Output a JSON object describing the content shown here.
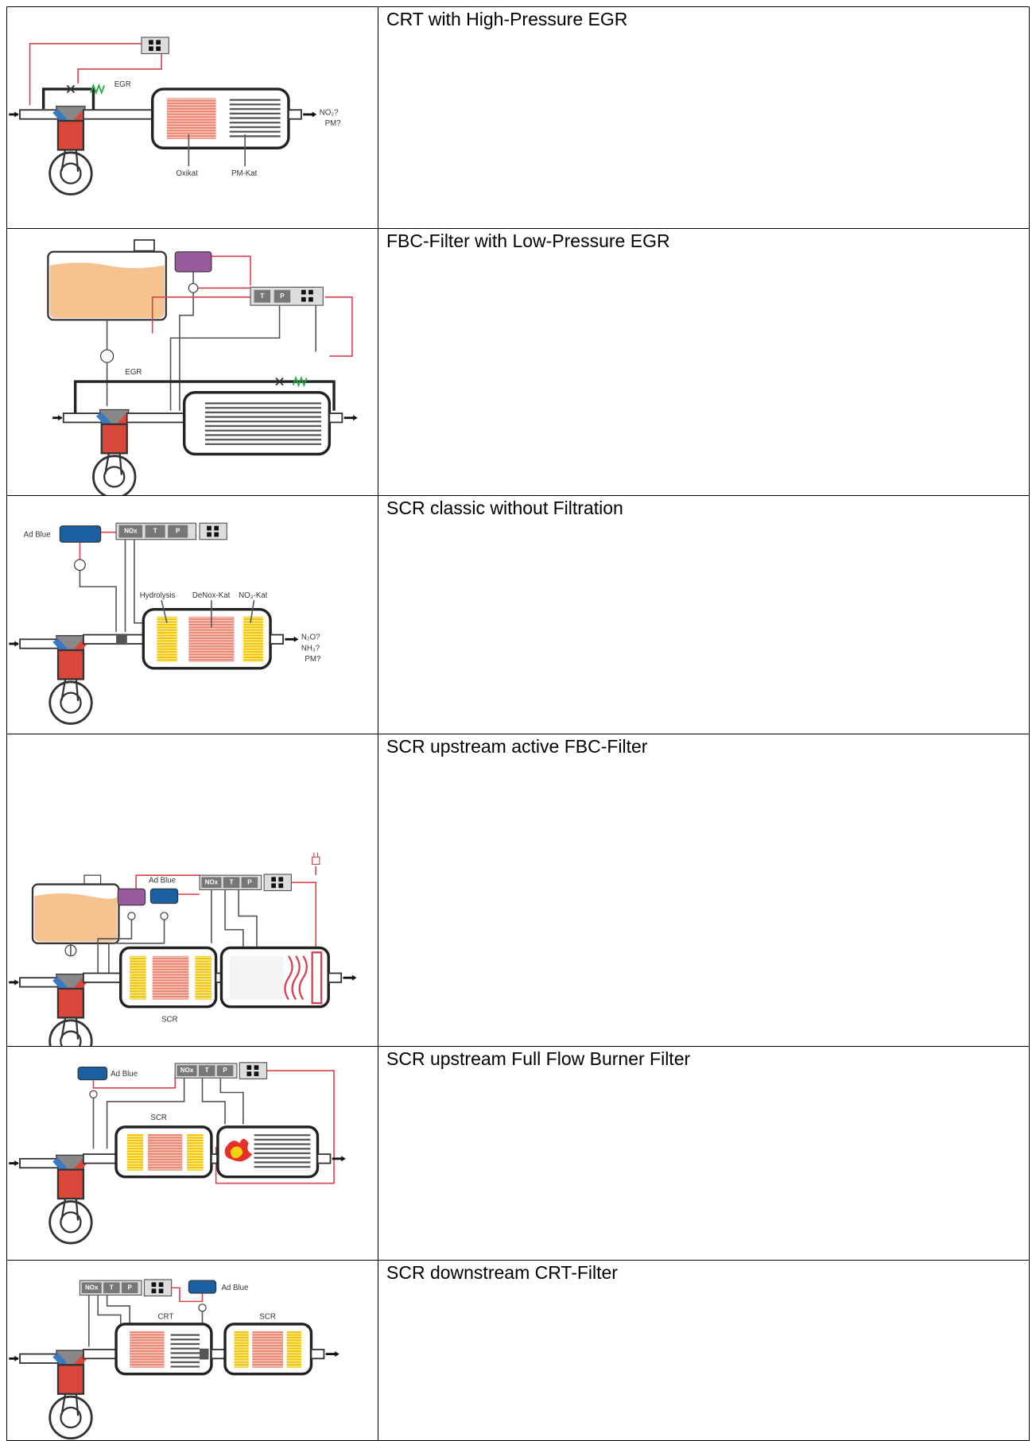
{
  "table": {
    "rows": [
      {
        "title": "CRT  with High-Pressure EGR",
        "labels": [
          "EGR",
          "Oxikat",
          "PM-Kat",
          "NO₂?",
          "PM?"
        ]
      },
      {
        "title": "FBC-Filter with Low-Pressure EGR",
        "labels": [
          "T",
          "P",
          "EGR"
        ]
      },
      {
        "title": "SCR classic without Filtration",
        "labels": [
          "Ad Blue",
          "NOx",
          "T",
          "P",
          "Hydrolysis",
          "DeNox-Kat",
          "NO₃-Kat",
          "N₂O?",
          "NH₃?",
          "PM?"
        ]
      },
      {
        "title": "SCR upstream  active FBC-Filter",
        "labels": [
          "Ad Blue",
          "NOx",
          "T",
          "P",
          "SCR"
        ]
      },
      {
        "title": "SCR upstream Full Flow Burner Filter",
        "labels": [
          "Ad Blue",
          "NOx",
          "T",
          "P",
          "SCR"
        ]
      },
      {
        "title": "SCR downstream CRT-Filter",
        "labels": [
          "NOx",
          "T",
          "P",
          "Ad Blue",
          "CRT",
          "SCR"
        ]
      }
    ]
  }
}
